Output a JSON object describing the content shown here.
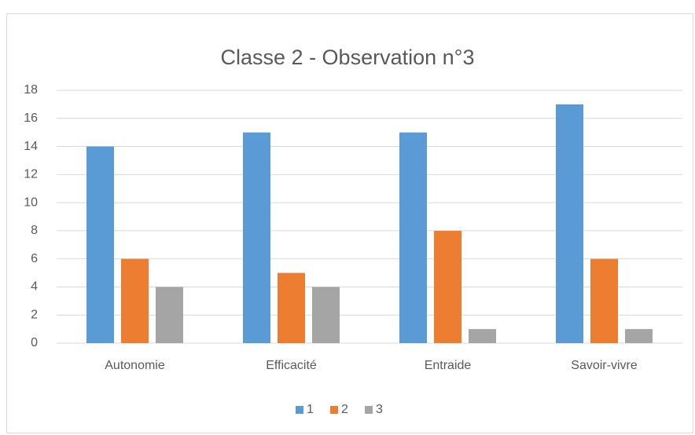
{
  "chart_data": {
    "type": "bar",
    "title": "Classe 2 - Observation n°3",
    "categories": [
      "Autonomie",
      "Efficacité",
      "Entraide",
      "Savoir-vivre"
    ],
    "series": [
      {
        "name": "1",
        "color": "#5b9bd5",
        "values": [
          14,
          15,
          15,
          17
        ]
      },
      {
        "name": "2",
        "color": "#ed7d31",
        "values": [
          6,
          5,
          8,
          6
        ]
      },
      {
        "name": "3",
        "color": "#a5a5a5",
        "values": [
          4,
          4,
          1,
          1
        ]
      }
    ],
    "ylim": [
      0,
      18
    ],
    "yticks": [
      0,
      2,
      4,
      6,
      8,
      10,
      12,
      14,
      16,
      18
    ],
    "grid": true,
    "legend": "bottom"
  }
}
